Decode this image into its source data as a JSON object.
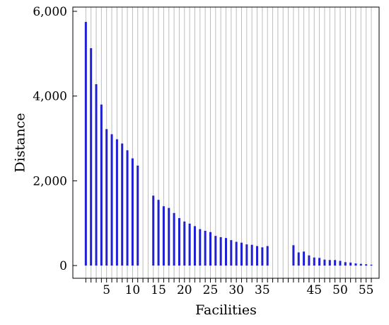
{
  "chart_data": {
    "type": "bar",
    "title": "",
    "xlabel": "Facilities",
    "ylabel": "Distance",
    "xlim": [
      -1.5,
      57.5
    ],
    "ylim": [
      -300,
      6100
    ],
    "grid": {
      "vertical": true,
      "horizontal": false
    },
    "colors": {
      "bar": "#1f1fd6",
      "grid": "#bdbdbd",
      "axis": "#000000"
    },
    "x_ticks": [
      5,
      10,
      15,
      20,
      25,
      30,
      35,
      45,
      50,
      55
    ],
    "x_tick_labels": [
      "5",
      "10",
      "15",
      "20",
      "25",
      "30",
      "35",
      "45",
      "50",
      "55"
    ],
    "y_ticks": [
      0,
      2000,
      4000,
      6000
    ],
    "y_tick_labels": [
      "0",
      "2,000",
      "4,000",
      "6,000"
    ],
    "x": [
      1,
      2,
      3,
      4,
      5,
      6,
      7,
      8,
      9,
      10,
      11,
      12,
      13,
      14,
      15,
      16,
      17,
      18,
      19,
      20,
      21,
      22,
      23,
      24,
      25,
      26,
      27,
      28,
      29,
      30,
      31,
      32,
      33,
      34,
      35,
      36,
      37,
      38,
      39,
      40,
      41,
      42,
      43,
      44,
      45,
      46,
      47,
      48,
      49,
      50,
      51,
      52,
      53,
      54,
      55,
      56
    ],
    "values": [
      5750,
      5130,
      4280,
      3800,
      3220,
      3100,
      2980,
      2880,
      2720,
      2530,
      2360,
      0,
      0,
      1650,
      1550,
      1400,
      1360,
      1240,
      1120,
      1040,
      990,
      930,
      860,
      820,
      790,
      700,
      670,
      650,
      600,
      560,
      540,
      500,
      490,
      460,
      430,
      460,
      0,
      0,
      0,
      0,
      480,
      310,
      330,
      240,
      190,
      180,
      140,
      130,
      130,
      110,
      80,
      70,
      50,
      40,
      30,
      20
    ]
  }
}
